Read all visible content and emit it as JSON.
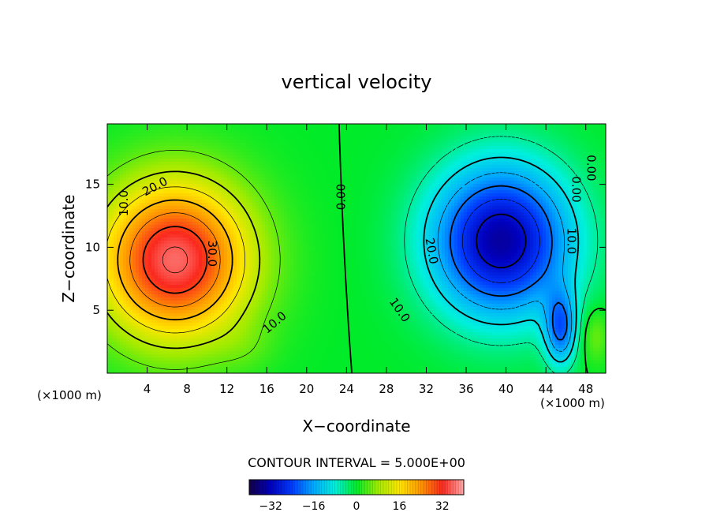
{
  "chart_data": {
    "type": "contour",
    "title": "vertical velocity",
    "xlabel": "X−coordinate",
    "ylabel": "Z−coordinate",
    "x_unit_left": "(×1000 m)",
    "x_unit_right": "(×1000 m)",
    "xlim": [
      0,
      50
    ],
    "ylim": [
      0,
      19.8
    ],
    "xticks": [
      4,
      8,
      12,
      16,
      20,
      24,
      28,
      32,
      36,
      40,
      44,
      48
    ],
    "yticks": [
      5,
      10,
      15
    ],
    "contour_interval_label": "CONTOUR INTERVAL = 5.000E+00",
    "contour_interval": 5,
    "updraft": {
      "center_x": 6.8,
      "center_z": 9,
      "max": 36
    },
    "downdraft": {
      "center_x": 39.5,
      "center_z": 10.5,
      "min": -34
    },
    "contour_labels": [
      {
        "text": "10.0",
        "x": 1.7,
        "z": 13.5,
        "angle": -90
      },
      {
        "text": "20.0",
        "x": 4.8,
        "z": 14.8,
        "angle": -28
      },
      {
        "text": "30.0",
        "x": 10.5,
        "z": 9.5,
        "angle": 90
      },
      {
        "text": "10.0",
        "x": 16.8,
        "z": 4.0,
        "angle": -40
      },
      {
        "text": "0.00",
        "x": 23.5,
        "z": 14.0,
        "angle": -90
      },
      {
        "text": "20.0",
        "x": 32.5,
        "z": 9.7,
        "angle": 80
      },
      {
        "text": "10.0",
        "x": 29.3,
        "z": 5.0,
        "angle": 55
      },
      {
        "text": "10.0",
        "x": 46.5,
        "z": 10.5,
        "angle": 90
      },
      {
        "text": "0.00",
        "x": 48.5,
        "z": 16.3,
        "angle": 90
      },
      {
        "text": "0.00",
        "x": 47.0,
        "z": 14.6,
        "angle": 90
      }
    ],
    "colorbar": {
      "range": [
        -40,
        40
      ],
      "ticks": [
        -32,
        -16,
        0,
        16,
        32
      ]
    }
  }
}
